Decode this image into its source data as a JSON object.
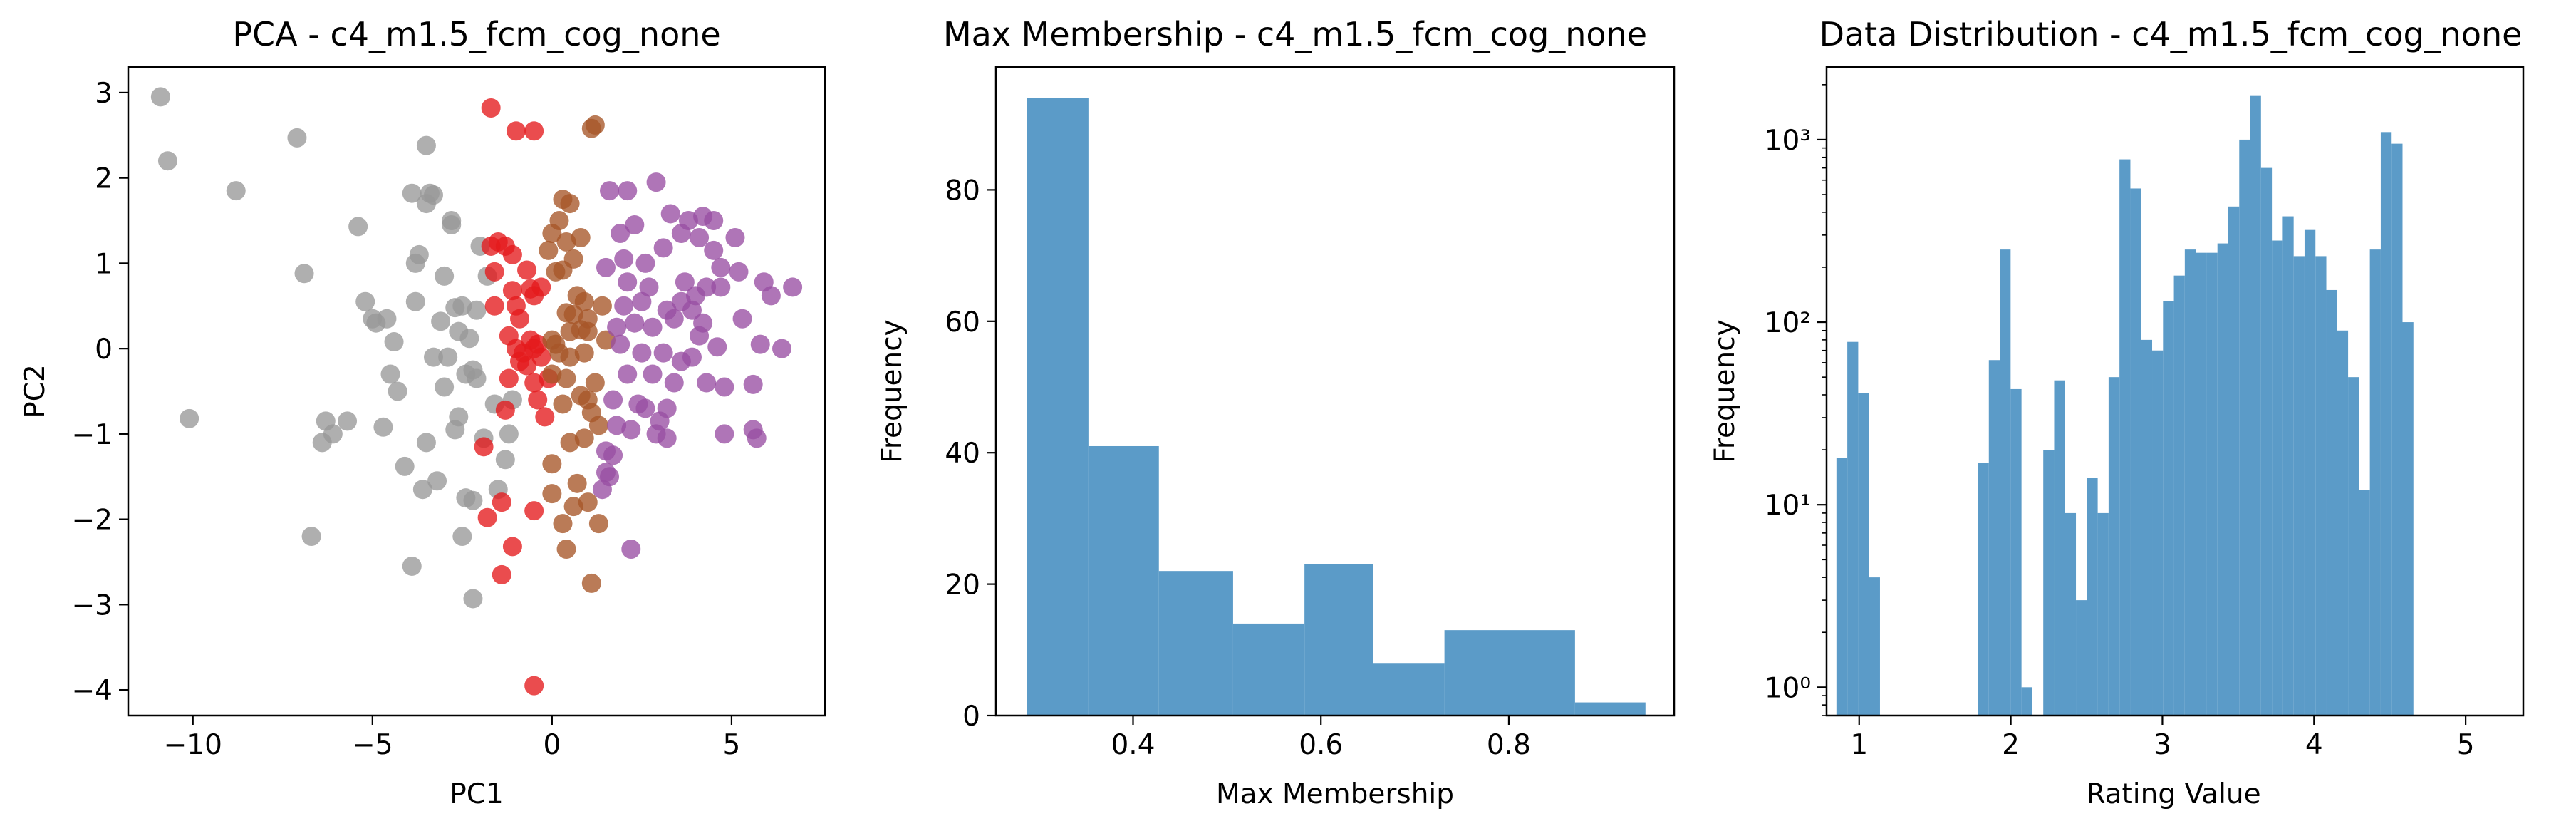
{
  "chart_data": [
    {
      "type": "scatter",
      "title": "PCA - c4_m1.5_fcm_cog_none",
      "xlabel": "PC1",
      "ylabel": "PC2",
      "xlim": [
        -11.8,
        7.6
      ],
      "ylim": [
        -4.3,
        3.3
      ],
      "xticks": [
        -10,
        -5,
        0,
        5
      ],
      "xtick_labels": [
        "−10",
        "−5",
        "0",
        "5"
      ],
      "yticks": [
        -4,
        -3,
        -2,
        -1,
        0,
        1,
        2,
        3
      ],
      "ytick_labels": [
        "−4",
        "−3",
        "−2",
        "−1",
        "0",
        "1",
        "2",
        "3"
      ],
      "grid": false,
      "series": [
        {
          "color": "#999999",
          "points": [
            [
              -10.9,
              2.95
            ],
            [
              -10.7,
              2.2
            ],
            [
              -10.1,
              -0.82
            ],
            [
              -8.8,
              1.85
            ],
            [
              -7.1,
              2.47
            ],
            [
              -6.9,
              0.88
            ],
            [
              -6.7,
              -2.2
            ],
            [
              -6.4,
              -1.1
            ],
            [
              -6.3,
              -0.85
            ],
            [
              -6.1,
              -1.0
            ],
            [
              -5.7,
              -0.85
            ],
            [
              -5.4,
              1.43
            ],
            [
              -5.2,
              0.55
            ],
            [
              -5.0,
              0.35
            ],
            [
              -4.9,
              0.3
            ],
            [
              -4.6,
              0.35
            ],
            [
              -4.7,
              -0.92
            ],
            [
              -4.5,
              -0.3
            ],
            [
              -4.4,
              0.08
            ],
            [
              -4.3,
              -0.5
            ],
            [
              -4.1,
              -1.38
            ],
            [
              -3.9,
              -2.55
            ],
            [
              -3.8,
              0.55
            ],
            [
              -3.8,
              1.0
            ],
            [
              -3.9,
              1.82
            ],
            [
              -3.7,
              1.1
            ],
            [
              -3.6,
              -1.65
            ],
            [
              -3.5,
              -1.1
            ],
            [
              -3.5,
              1.7
            ],
            [
              -3.5,
              2.38
            ],
            [
              -3.4,
              1.82
            ],
            [
              -3.3,
              1.8
            ],
            [
              -3.2,
              -1.55
            ],
            [
              -3.1,
              0.32
            ],
            [
              -3.0,
              0.85
            ],
            [
              -3.0,
              -0.45
            ],
            [
              -2.9,
              -0.1
            ],
            [
              -2.8,
              1.5
            ],
            [
              -2.8,
              1.45
            ],
            [
              -2.7,
              0.48
            ],
            [
              -2.6,
              -0.8
            ],
            [
              -2.7,
              -0.95
            ],
            [
              -2.5,
              0.5
            ],
            [
              -2.5,
              -2.2
            ],
            [
              -2.4,
              -0.3
            ],
            [
              -2.4,
              -1.75
            ],
            [
              -2.3,
              0.12
            ],
            [
              -2.2,
              -2.93
            ],
            [
              -2.2,
              -1.78
            ],
            [
              -2.1,
              0.45
            ],
            [
              -2.0,
              1.2
            ],
            [
              -2.2,
              -0.25
            ],
            [
              -2.1,
              -0.35
            ],
            [
              -1.8,
              0.85
            ],
            [
              -1.6,
              -0.65
            ],
            [
              -1.5,
              -1.65
            ],
            [
              -1.3,
              -1.3
            ],
            [
              -1.2,
              -1.0
            ],
            [
              -1.1,
              -0.6
            ],
            [
              -1.9,
              -1.05
            ],
            [
              -3.3,
              -0.1
            ],
            [
              -2.6,
              0.2
            ]
          ]
        },
        {
          "color": "#e41a1c",
          "points": [
            [
              -1.7,
              2.82
            ],
            [
              -1.0,
              2.55
            ],
            [
              -0.5,
              2.55
            ],
            [
              -1.7,
              1.2
            ],
            [
              -1.5,
              1.25
            ],
            [
              -1.3,
              1.2
            ],
            [
              -1.6,
              0.9
            ],
            [
              -1.1,
              1.1
            ],
            [
              -0.7,
              0.92
            ],
            [
              -0.6,
              0.7
            ],
            [
              -0.3,
              0.72
            ],
            [
              -0.5,
              0.62
            ],
            [
              -1.6,
              0.5
            ],
            [
              -1.0,
              0.5
            ],
            [
              -0.9,
              0.35
            ],
            [
              -1.2,
              0.15
            ],
            [
              -1.0,
              0.0
            ],
            [
              -0.8,
              -0.05
            ],
            [
              -0.6,
              0.1
            ],
            [
              -0.5,
              0.0
            ],
            [
              -0.4,
              0.05
            ],
            [
              -0.7,
              -0.2
            ],
            [
              -0.5,
              -0.4
            ],
            [
              -0.9,
              -0.15
            ],
            [
              -1.2,
              -0.35
            ],
            [
              -0.1,
              -0.35
            ],
            [
              -0.4,
              -0.6
            ],
            [
              -0.2,
              -0.8
            ],
            [
              -1.3,
              -0.72
            ],
            [
              -1.9,
              -1.15
            ],
            [
              -1.4,
              -1.8
            ],
            [
              -1.8,
              -1.98
            ],
            [
              -1.1,
              -2.32
            ],
            [
              -0.5,
              -1.9
            ],
            [
              -1.4,
              -2.65
            ],
            [
              -0.5,
              -3.95
            ],
            [
              -0.3,
              -0.1
            ],
            [
              -1.1,
              0.68
            ]
          ]
        },
        {
          "color": "#a65628",
          "points": [
            [
              1.1,
              2.58
            ],
            [
              1.2,
              2.62
            ],
            [
              0.3,
              1.75
            ],
            [
              0.5,
              1.7
            ],
            [
              0.2,
              1.5
            ],
            [
              0.0,
              1.35
            ],
            [
              0.8,
              1.3
            ],
            [
              0.4,
              1.25
            ],
            [
              0.3,
              0.92
            ],
            [
              0.6,
              1.05
            ],
            [
              -0.1,
              1.15
            ],
            [
              0.1,
              0.9
            ],
            [
              0.7,
              0.62
            ],
            [
              0.9,
              0.55
            ],
            [
              0.4,
              0.42
            ],
            [
              1.0,
              0.35
            ],
            [
              0.8,
              0.22
            ],
            [
              0.5,
              0.2
            ],
            [
              1.0,
              0.2
            ],
            [
              0.1,
              0.05
            ],
            [
              0.2,
              -0.05
            ],
            [
              0.5,
              -0.1
            ],
            [
              0.9,
              -0.05
            ],
            [
              0.0,
              -0.3
            ],
            [
              0.4,
              -0.35
            ],
            [
              1.2,
              -0.4
            ],
            [
              0.8,
              -0.55
            ],
            [
              1.0,
              -0.6
            ],
            [
              1.1,
              -0.75
            ],
            [
              1.3,
              -0.9
            ],
            [
              0.3,
              -0.65
            ],
            [
              0.5,
              -1.1
            ],
            [
              0.9,
              -1.05
            ],
            [
              0.0,
              -1.35
            ],
            [
              0.7,
              -1.58
            ],
            [
              0.6,
              -1.85
            ],
            [
              0.0,
              -1.7
            ],
            [
              0.3,
              -2.05
            ],
            [
              1.0,
              -1.8
            ],
            [
              0.4,
              -2.35
            ],
            [
              1.3,
              -2.05
            ],
            [
              1.1,
              -2.75
            ],
            [
              1.4,
              0.5
            ],
            [
              1.5,
              0.1
            ],
            [
              0.0,
              0.1
            ],
            [
              0.6,
              0.4
            ]
          ]
        },
        {
          "color": "#984ea3",
          "points": [
            [
              1.6,
              1.85
            ],
            [
              2.1,
              1.85
            ],
            [
              2.9,
              1.95
            ],
            [
              3.3,
              1.58
            ],
            [
              3.8,
              1.5
            ],
            [
              4.2,
              1.55
            ],
            [
              4.5,
              1.5
            ],
            [
              1.9,
              1.35
            ],
            [
              2.3,
              1.45
            ],
            [
              2.0,
              1.05
            ],
            [
              2.6,
              1.0
            ],
            [
              3.1,
              1.18
            ],
            [
              3.6,
              1.35
            ],
            [
              4.1,
              1.3
            ],
            [
              4.5,
              1.15
            ],
            [
              5.1,
              1.3
            ],
            [
              4.7,
              0.95
            ],
            [
              5.2,
              0.9
            ],
            [
              1.5,
              0.95
            ],
            [
              2.1,
              0.78
            ],
            [
              2.7,
              0.72
            ],
            [
              3.7,
              0.78
            ],
            [
              4.3,
              0.72
            ],
            [
              4.7,
              0.72
            ],
            [
              5.9,
              0.78
            ],
            [
              6.1,
              0.62
            ],
            [
              6.7,
              0.72
            ],
            [
              3.2,
              0.45
            ],
            [
              3.6,
              0.55
            ],
            [
              3.9,
              0.45
            ],
            [
              4.0,
              0.62
            ],
            [
              2.0,
              0.5
            ],
            [
              2.3,
              0.3
            ],
            [
              2.8,
              0.25
            ],
            [
              3.4,
              0.35
            ],
            [
              4.2,
              0.3
            ],
            [
              5.3,
              0.35
            ],
            [
              1.9,
              0.05
            ],
            [
              2.5,
              -0.05
            ],
            [
              3.1,
              -0.05
            ],
            [
              3.6,
              -0.15
            ],
            [
              3.9,
              -0.1
            ],
            [
              4.6,
              0.02
            ],
            [
              5.8,
              0.05
            ],
            [
              6.4,
              0.0
            ],
            [
              2.1,
              -0.3
            ],
            [
              2.8,
              -0.3
            ],
            [
              3.4,
              -0.4
            ],
            [
              4.3,
              -0.4
            ],
            [
              4.8,
              -0.45
            ],
            [
              5.6,
              -0.42
            ],
            [
              2.4,
              -0.65
            ],
            [
              2.6,
              -0.7
            ],
            [
              3.0,
              -0.85
            ],
            [
              3.2,
              -0.7
            ],
            [
              2.2,
              -0.95
            ],
            [
              2.9,
              -1.0
            ],
            [
              3.2,
              -1.05
            ],
            [
              4.8,
              -1.0
            ],
            [
              5.6,
              -0.95
            ],
            [
              5.7,
              -1.05
            ],
            [
              1.5,
              -1.2
            ],
            [
              1.7,
              -1.25
            ],
            [
              1.8,
              -0.9
            ],
            [
              1.6,
              -1.5
            ],
            [
              1.4,
              -1.65
            ],
            [
              1.5,
              -1.45
            ],
            [
              2.2,
              -2.35
            ],
            [
              1.8,
              0.25
            ],
            [
              4.1,
              0.15
            ],
            [
              1.7,
              -0.6
            ],
            [
              2.5,
              0.55
            ]
          ]
        }
      ]
    },
    {
      "type": "bar",
      "title": "Max Membership - c4_m1.5_fcm_cog_none",
      "xlabel": "Max Membership",
      "ylabel": "Frequency",
      "xlim": [
        0.254,
        0.976
      ],
      "ylim": [
        0,
        98.7
      ],
      "xticks": [
        0.4,
        0.6,
        0.8
      ],
      "xtick_labels": [
        "0.4",
        "0.6",
        "0.8"
      ],
      "yticks": [
        0,
        20,
        40,
        60,
        80
      ],
      "ytick_labels": [
        "0",
        "20",
        "40",
        "60",
        "80"
      ],
      "color": "#5b9bc8",
      "bins": [
        [
          0.287,
          0.3525,
          94
        ],
        [
          0.3525,
          0.4275,
          41
        ],
        [
          0.4275,
          0.5065,
          22
        ],
        [
          0.5065,
          0.5825,
          14
        ],
        [
          0.5825,
          0.6555,
          23
        ],
        [
          0.6555,
          0.7315,
          8
        ],
        [
          0.7315,
          0.8705,
          13
        ],
        [
          0.8705,
          0.9455,
          2
        ]
      ]
    },
    {
      "type": "bar",
      "title": "Data Distribution - c4_m1.5_fcm_cog_none",
      "xlabel": "Rating Value",
      "ylabel": "Frequency",
      "yscale": "log",
      "xlim": [
        0.785,
        5.38
      ],
      "ylim": [
        0.7,
        2500
      ],
      "xticks": [
        1,
        2,
        3,
        4,
        5
      ],
      "xtick_labels": [
        "1",
        "2",
        "3",
        "4",
        "5"
      ],
      "yticks": [
        1,
        10,
        100,
        1000
      ],
      "ytick_labels": [
        "10⁰",
        "10¹",
        "10²",
        "10³"
      ],
      "color": "#5b9bc8",
      "bin_start": 0.85,
      "bin_width": 0.0718,
      "values": [
        18,
        78,
        41,
        4,
        0,
        0,
        0,
        0,
        0,
        0,
        0,
        0,
        0,
        17,
        62,
        250,
        43,
        1,
        0,
        20,
        48,
        9,
        3,
        14,
        9,
        50,
        780,
        540,
        80,
        70,
        130,
        180,
        250,
        240,
        240,
        270,
        430,
        1000,
        1750,
        700,
        280,
        380,
        230,
        320,
        230,
        150,
        90,
        50,
        12,
        250,
        1100,
        950,
        100
      ]
    }
  ]
}
